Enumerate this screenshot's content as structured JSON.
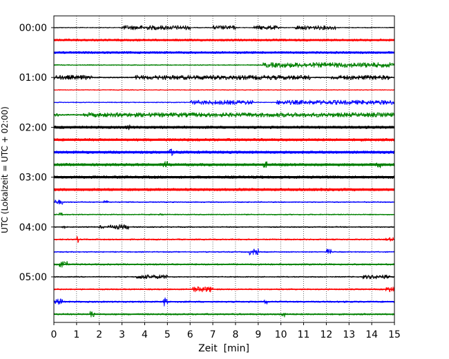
{
  "chart_data": {
    "type": "line",
    "title": "",
    "xlabel": "Zeit  [min]",
    "ylabel": "UTC (Lokalzeit = UTC + 02:00)",
    "xlim": [
      0,
      15
    ],
    "x_ticks": [
      "0",
      "1",
      "2",
      "3",
      "4",
      "5",
      "6",
      "7",
      "8",
      "9",
      "10",
      "11",
      "12",
      "13",
      "14",
      "15"
    ],
    "y_ticks": [
      "00:00",
      "01:00",
      "02:00",
      "03:00",
      "04:00",
      "05:00"
    ],
    "grid": "vertical dotted",
    "legend": "none",
    "colors": [
      "#000000",
      "#ff0000",
      "#0000ff",
      "#008000"
    ],
    "trace_interval_min": 15,
    "traces": [
      {
        "start": "00:00",
        "color": "#000000",
        "width": 1.2,
        "bursts": [
          [
            3.0,
            6.0,
            3.2
          ],
          [
            7.0,
            8.0,
            3.0
          ],
          [
            8.8,
            9.9,
            3.0
          ],
          [
            10.6,
            12.4,
            3.0
          ]
        ]
      },
      {
        "start": "00:15",
        "color": "#ff0000",
        "width": 3.4,
        "bursts": []
      },
      {
        "start": "00:30",
        "color": "#0000ff",
        "width": 3.4,
        "bursts": [
          [
            14.2,
            14.4,
            1.0
          ]
        ]
      },
      {
        "start": "00:45",
        "color": "#008000",
        "width": 1.4,
        "bursts": [
          [
            9.2,
            15.0,
            3.6
          ]
        ]
      },
      {
        "start": "01:00",
        "color": "#000000",
        "width": 1.8,
        "bursts": [
          [
            0,
            1.7,
            3.2
          ],
          [
            3.6,
            11.3,
            3.2
          ],
          [
            12.2,
            14.8,
            3.2
          ]
        ]
      },
      {
        "start": "01:15",
        "color": "#ff0000",
        "width": 1.2,
        "bursts": []
      },
      {
        "start": "01:30",
        "color": "#0000ff",
        "width": 1.2,
        "bursts": [
          [
            6.0,
            8.8,
            3.2
          ],
          [
            9.8,
            15.0,
            3.2
          ]
        ]
      },
      {
        "start": "01:45",
        "color": "#008000",
        "width": 1.8,
        "bursts": [
          [
            0,
            0.2,
            3.0
          ],
          [
            1.3,
            15.0,
            3.2
          ]
        ]
      },
      {
        "start": "02:00",
        "color": "#000000",
        "width": 4.0,
        "bursts": [
          [
            3.2,
            3.4,
            4.0
          ]
        ]
      },
      {
        "start": "02:15",
        "color": "#ff0000",
        "width": 4.0,
        "bursts": []
      },
      {
        "start": "02:30",
        "color": "#0000ff",
        "width": 4.0,
        "bursts": [
          [
            5.0,
            5.4,
            5.0
          ]
        ]
      },
      {
        "start": "02:45",
        "color": "#008000",
        "width": 4.0,
        "bursts": [
          [
            4.8,
            5.0,
            5.0
          ],
          [
            9.2,
            9.4,
            4.6
          ],
          [
            14.2,
            14.4,
            4.6
          ]
        ]
      },
      {
        "start": "03:00",
        "color": "#000000",
        "width": 4.0,
        "bursts": []
      },
      {
        "start": "03:15",
        "color": "#ff0000",
        "width": 4.0,
        "bursts": []
      },
      {
        "start": "03:30",
        "color": "#0000ff",
        "width": 1.6,
        "bursts": [
          [
            0,
            0.4,
            3.4
          ],
          [
            2.2,
            2.4,
            2.6
          ]
        ]
      },
      {
        "start": "03:45",
        "color": "#008000",
        "width": 1.6,
        "bursts": [
          [
            0.2,
            0.4,
            2.4
          ],
          [
            4.6,
            4.8,
            2.4
          ]
        ]
      },
      {
        "start": "04:00",
        "color": "#000000",
        "width": 1.6,
        "bursts": [
          [
            0.4,
            0.5,
            3.0
          ],
          [
            2.0,
            2.2,
            2.4
          ],
          [
            2.4,
            2.8,
            3.0
          ],
          [
            2.8,
            3.3,
            3.4
          ]
        ]
      },
      {
        "start": "04:15",
        "color": "#ff0000",
        "width": 2.0,
        "bursts": [
          [
            1.0,
            1.1,
            4.6
          ],
          [
            14.6,
            15.0,
            3.0
          ]
        ]
      },
      {
        "start": "04:30",
        "color": "#0000ff",
        "width": 1.6,
        "bursts": [
          [
            8.6,
            9.0,
            4.6
          ],
          [
            12.0,
            12.2,
            4.0
          ]
        ]
      },
      {
        "start": "04:45",
        "color": "#008000",
        "width": 2.4,
        "bursts": [
          [
            0.2,
            0.6,
            5.0
          ]
        ]
      },
      {
        "start": "05:00",
        "color": "#000000",
        "width": 1.6,
        "bursts": [
          [
            3.6,
            5.0,
            3.0
          ],
          [
            13.6,
            14.8,
            3.0
          ]
        ]
      },
      {
        "start": "05:15",
        "color": "#ff0000",
        "width": 2.0,
        "bursts": [
          [
            6.0,
            7.0,
            4.0
          ],
          [
            14.6,
            15.0,
            4.0
          ]
        ]
      },
      {
        "start": "05:30",
        "color": "#0000ff",
        "width": 2.4,
        "bursts": [
          [
            0,
            0.4,
            4.4
          ],
          [
            4.8,
            5.0,
            7.0
          ],
          [
            9.2,
            9.4,
            4.0
          ]
        ]
      },
      {
        "start": "05:45",
        "color": "#008000",
        "width": 2.4,
        "bursts": [
          [
            1.6,
            1.8,
            6.0
          ],
          [
            10.0,
            10.2,
            4.6
          ]
        ]
      }
    ]
  }
}
